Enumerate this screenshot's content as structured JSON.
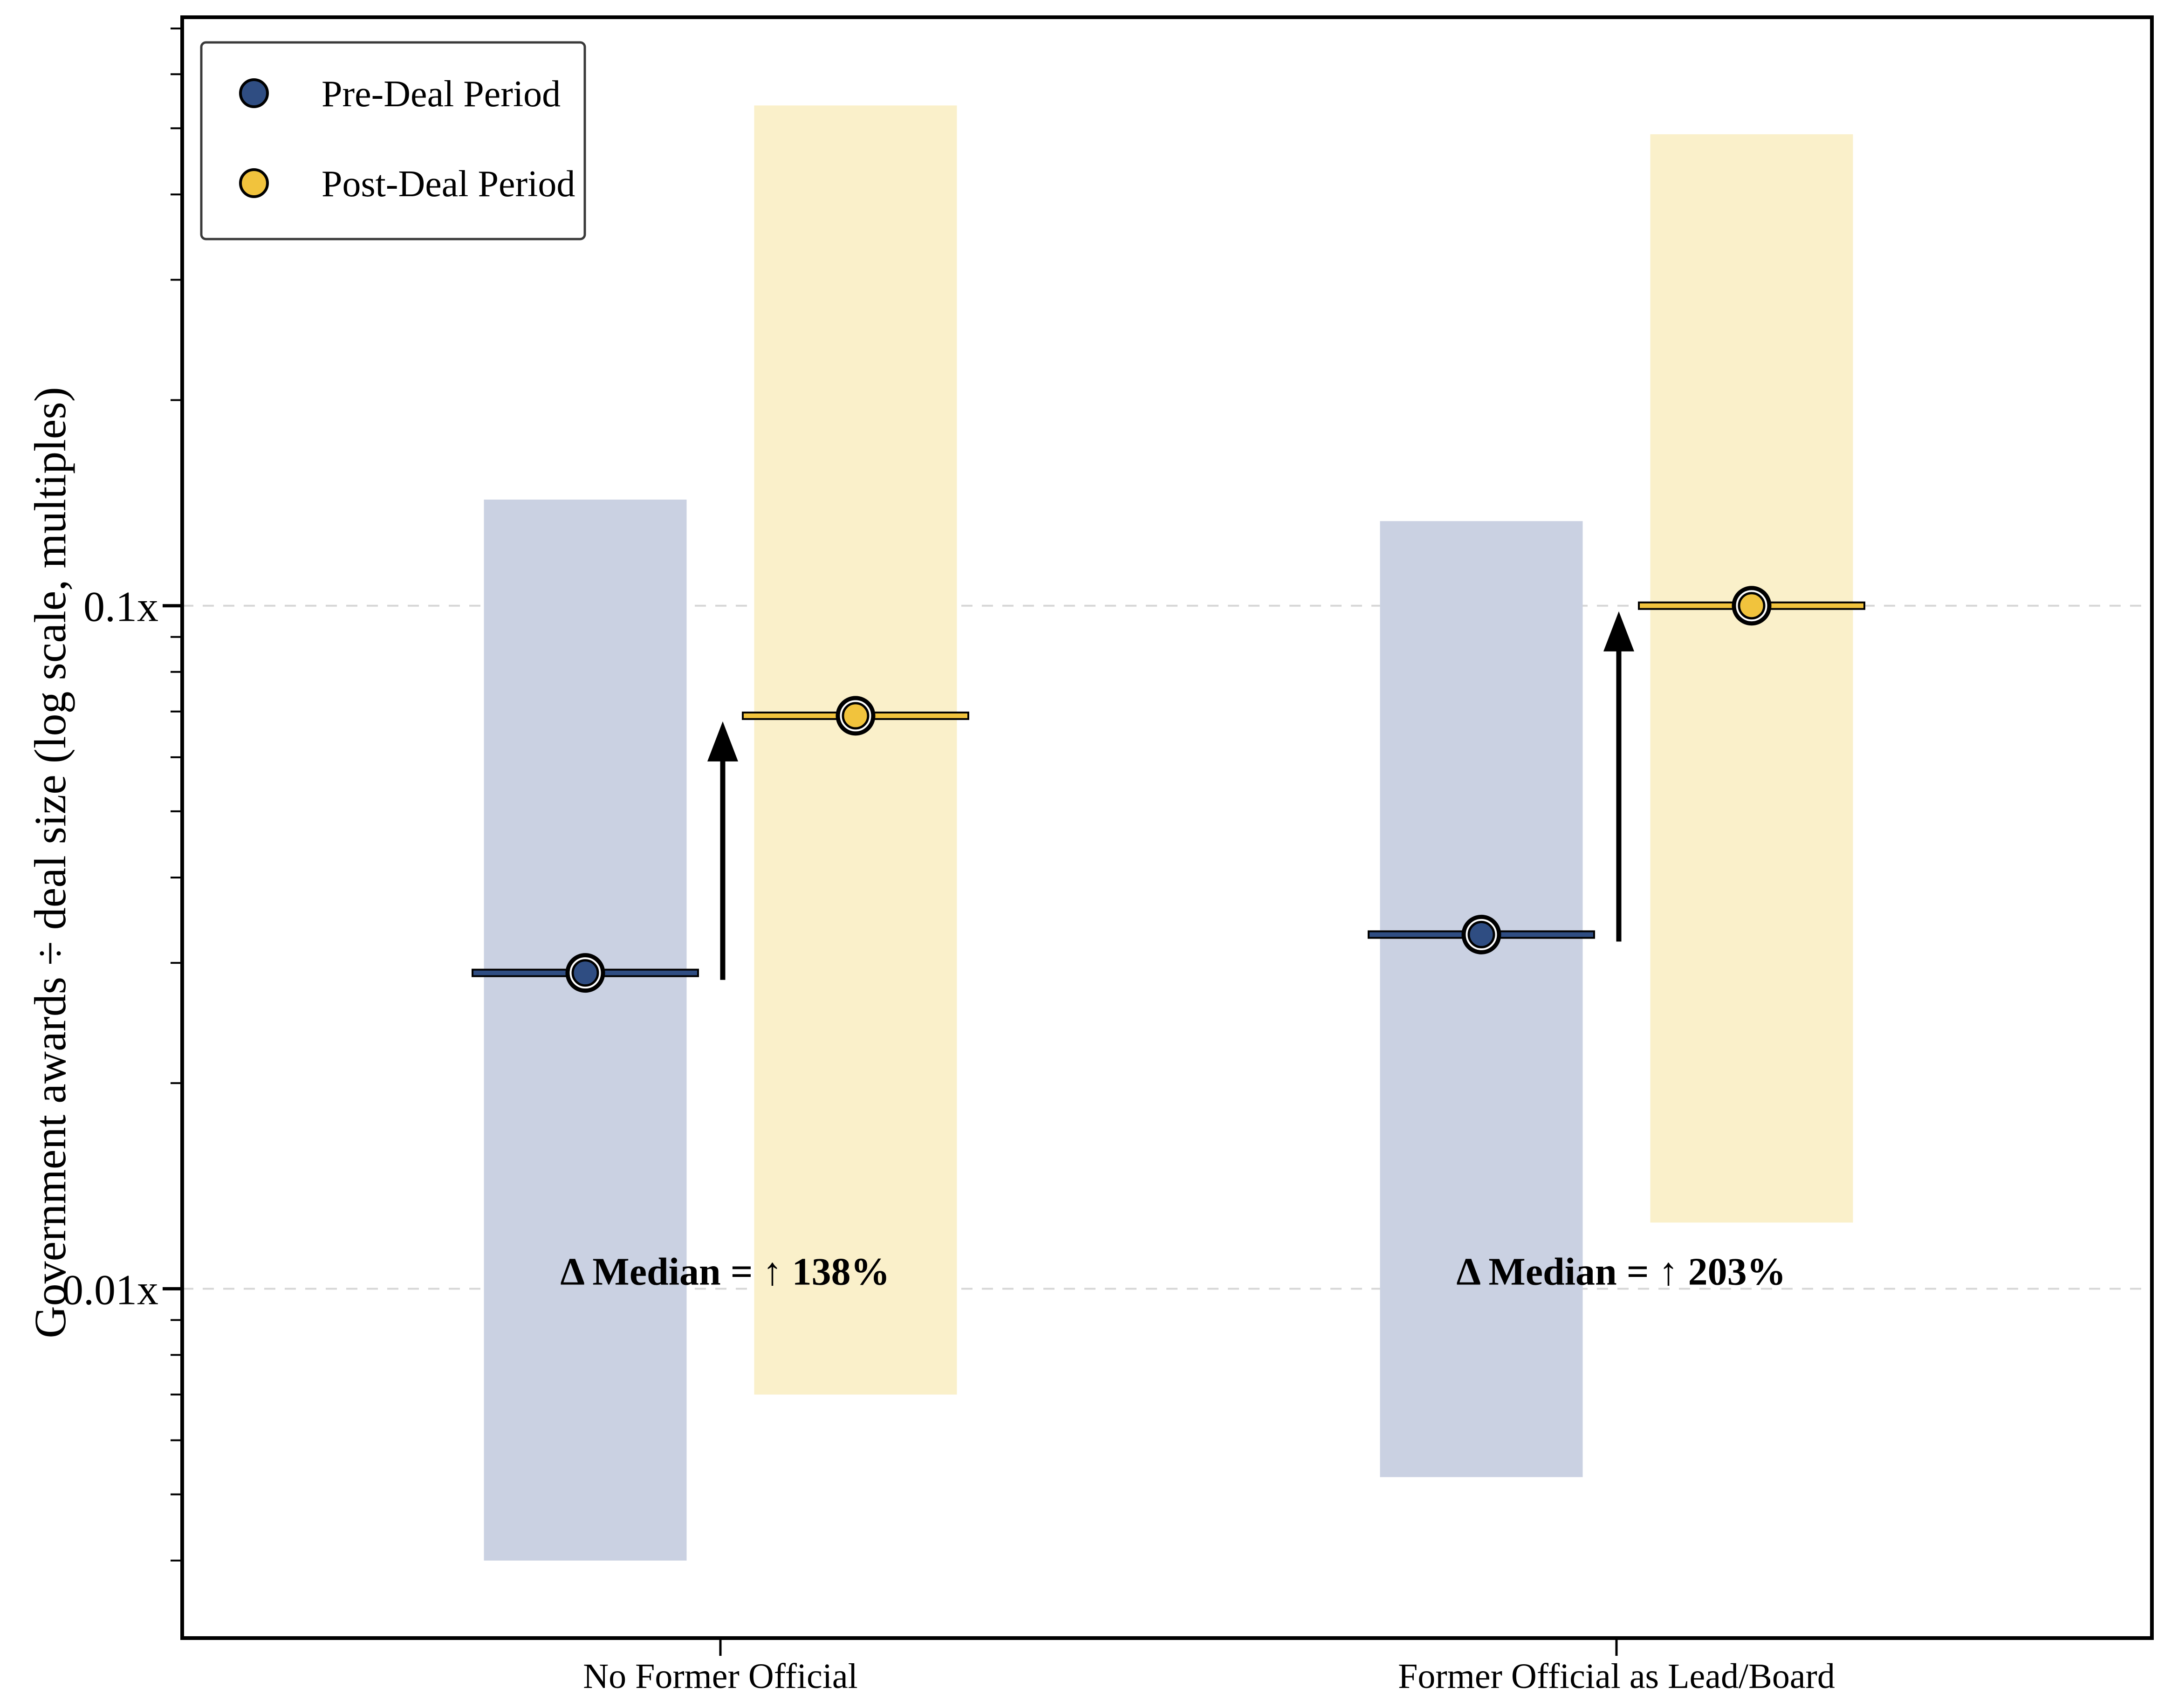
{
  "figure": {
    "background_color": "#ffffff",
    "y_axis_label": "Government awards ÷ deal size (log scale, multiples)"
  },
  "legend": {
    "position": "upper left",
    "items": [
      {
        "label": "Pre-Deal Period",
        "color": "#2f4d82"
      },
      {
        "label": "Post-Deal Period",
        "color": "#f1c33d"
      }
    ]
  },
  "chart_data": {
    "type": "grouped_median_range_bars",
    "yscale": "log",
    "ylabel": "Government awards ÷ deal size (log scale, multiples)",
    "ylim": [
      0.00308,
      0.727
    ],
    "yticks": [
      {
        "value": 0.1,
        "label": "0.1x"
      },
      {
        "value": 0.01,
        "label": "0.01x"
      }
    ],
    "grid": {
      "orientation": "horizontal",
      "style": "dashed",
      "color": "#d6d6d6",
      "at_values": [
        0.1,
        0.01
      ]
    },
    "categories": [
      "No Former Official",
      "Former Official as Lead/Board"
    ],
    "series": [
      {
        "name": "Pre-Deal Period",
        "marker_color": "#2f4d82",
        "band_color": "#cad1e2",
        "medians": [
          0.029,
          0.033
        ],
        "band_low": [
          0.004,
          0.0053
        ],
        "band_high": [
          0.143,
          0.133
        ]
      },
      {
        "name": "Post-Deal Period",
        "marker_color": "#f1c33d",
        "band_color": "#faf0ca",
        "medians": [
          0.069,
          0.1
        ],
        "band_low": [
          0.007,
          0.0125
        ],
        "band_high": [
          0.54,
          0.49
        ]
      }
    ],
    "annotations": [
      {
        "text": "Δ Median = ↑ 138%",
        "category": "No Former Official",
        "delta_pct": 138,
        "y_value": 0.0105
      },
      {
        "text": "Δ Median = ↑ 203%",
        "category": "Former Official as Lead/Board",
        "delta_pct": 203,
        "y_value": 0.0105
      }
    ],
    "arrow_color": "#000000",
    "spine_color": "#000000"
  }
}
